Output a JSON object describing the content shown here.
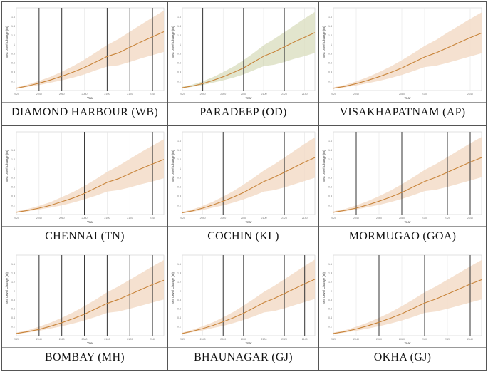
{
  "shared": {
    "x_label": "Year",
    "y_label": "Sea Level Change (m)",
    "line_color": "#c8843a",
    "band_color": "#f3dcc8",
    "band_color_alt": "#dde0c4",
    "x": [
      2020,
      2030,
      2040,
      2050,
      2060,
      2070,
      2080,
      2090,
      2100,
      2110,
      2120,
      2130,
      2140,
      2150
    ],
    "ylim": [
      0,
      1.8
    ]
  },
  "chart_data": [
    {
      "type": "area",
      "title": "DIAMOND HARBOUR (WB)",
      "variant": "orange",
      "x_ticks": [
        "2020",
        "2040",
        "2060",
        "2080",
        "2100",
        "2120",
        "2140"
      ],
      "y_ticks": [
        "0.2",
        "0.4",
        "0.6",
        "0.8",
        "1",
        "1.2",
        "1.4",
        "1.6"
      ],
      "vlines": [
        2040,
        2060,
        2100,
        2120,
        2140
      ],
      "median": [
        0.05,
        0.1,
        0.16,
        0.23,
        0.31,
        0.4,
        0.5,
        0.62,
        0.74,
        0.82,
        0.94,
        1.06,
        1.17,
        1.28
      ],
      "low": [
        0.04,
        0.08,
        0.12,
        0.17,
        0.22,
        0.28,
        0.35,
        0.44,
        0.52,
        0.55,
        0.62,
        0.7,
        0.77,
        0.84
      ],
      "high": [
        0.07,
        0.13,
        0.21,
        0.3,
        0.41,
        0.53,
        0.67,
        0.83,
        0.99,
        1.12,
        1.28,
        1.44,
        1.59,
        1.74
      ]
    },
    {
      "type": "area",
      "title": "PARADEEP (OD)",
      "variant": "olive",
      "x_ticks": [
        "2020",
        "2040",
        "2060",
        "2080",
        "2100",
        "2120",
        "2140"
      ],
      "y_ticks": [
        "0.2",
        "0.4",
        "0.6",
        "0.8",
        "1",
        "1.2",
        "1.4",
        "1.6"
      ],
      "vlines": [
        2040,
        2080,
        2100,
        2120
      ],
      "median": [
        0.06,
        0.1,
        0.15,
        0.22,
        0.3,
        0.39,
        0.49,
        0.62,
        0.75,
        0.84,
        0.95,
        1.06,
        1.16,
        1.26
      ],
      "low": [
        0.05,
        0.08,
        0.12,
        0.17,
        0.22,
        0.28,
        0.35,
        0.44,
        0.53,
        0.56,
        0.62,
        0.69,
        0.75,
        0.82
      ],
      "high": [
        0.08,
        0.13,
        0.2,
        0.29,
        0.4,
        0.52,
        0.66,
        0.82,
        0.99,
        1.12,
        1.27,
        1.42,
        1.57,
        1.71
      ]
    },
    {
      "type": "area",
      "title": "VISAKHAPATNAM (AP)",
      "variant": "orange",
      "x_ticks": [
        "2020",
        "2040",
        "2080",
        "2100",
        "2140"
      ],
      "y_ticks": [
        "0.2",
        "0.4",
        "0.6",
        "0.8",
        "1",
        "1.2",
        "1.4",
        "1.6"
      ],
      "vlines": [],
      "median": [
        0.05,
        0.09,
        0.15,
        0.22,
        0.3,
        0.39,
        0.49,
        0.61,
        0.73,
        0.82,
        0.93,
        1.04,
        1.15,
        1.25
      ],
      "low": [
        0.04,
        0.07,
        0.11,
        0.16,
        0.21,
        0.27,
        0.34,
        0.42,
        0.51,
        0.54,
        0.6,
        0.67,
        0.74,
        0.81
      ],
      "high": [
        0.07,
        0.12,
        0.2,
        0.29,
        0.4,
        0.52,
        0.66,
        0.81,
        0.97,
        1.1,
        1.26,
        1.41,
        1.56,
        1.7
      ]
    },
    {
      "type": "area",
      "title": "CHENNAI (TN)",
      "variant": "orange",
      "x_ticks": [
        "2020",
        "2040",
        "2060",
        "2080",
        "2100",
        "2120",
        "2140"
      ],
      "y_ticks": [
        "0.2",
        "0.4",
        "0.6",
        "0.8",
        "1",
        "1.2",
        "1.4"
      ],
      "vlines": [
        2080,
        2140
      ],
      "median": [
        0.05,
        0.09,
        0.14,
        0.2,
        0.28,
        0.36,
        0.46,
        0.58,
        0.7,
        0.78,
        0.89,
        1.0,
        1.1,
        1.2
      ],
      "low": [
        0.04,
        0.07,
        0.11,
        0.15,
        0.2,
        0.26,
        0.33,
        0.41,
        0.5,
        0.53,
        0.59,
        0.66,
        0.72,
        0.79
      ],
      "high": [
        0.07,
        0.12,
        0.19,
        0.27,
        0.38,
        0.49,
        0.62,
        0.77,
        0.93,
        1.06,
        1.21,
        1.36,
        1.5,
        1.64
      ]
    },
    {
      "type": "area",
      "title": "COCHIN (KL)",
      "variant": "orange",
      "x_ticks": [
        "2020",
        "2040",
        "2060",
        "2080",
        "2100",
        "2120",
        "2140"
      ],
      "y_ticks": [
        "0.2",
        "0.4",
        "0.6",
        "0.8",
        "1",
        "1.2",
        "1.4",
        "1.6"
      ],
      "vlines": [
        2060,
        2120
      ],
      "median": [
        0.04,
        0.08,
        0.14,
        0.21,
        0.29,
        0.38,
        0.48,
        0.6,
        0.72,
        0.81,
        0.92,
        1.03,
        1.14,
        1.24
      ],
      "low": [
        0.03,
        0.06,
        0.1,
        0.15,
        0.2,
        0.26,
        0.33,
        0.41,
        0.5,
        0.53,
        0.59,
        0.66,
        0.73,
        0.8
      ],
      "high": [
        0.06,
        0.11,
        0.19,
        0.28,
        0.39,
        0.51,
        0.65,
        0.8,
        0.96,
        1.09,
        1.24,
        1.39,
        1.54,
        1.68
      ]
    },
    {
      "type": "area",
      "title": "MORMUGAO (GOA)",
      "variant": "orange",
      "x_ticks": [
        "2020",
        "2040",
        "2060",
        "2080",
        "2100",
        "2120",
        "2140"
      ],
      "y_ticks": [
        "0.2",
        "0.4",
        "0.6",
        "0.8",
        "1",
        "1.2",
        "1.4",
        "1.6"
      ],
      "vlines": [
        2040,
        2080,
        2120,
        2140
      ],
      "median": [
        0.05,
        0.09,
        0.14,
        0.21,
        0.29,
        0.38,
        0.48,
        0.6,
        0.72,
        0.81,
        0.92,
        1.03,
        1.14,
        1.24
      ],
      "low": [
        0.04,
        0.07,
        0.11,
        0.16,
        0.21,
        0.27,
        0.34,
        0.42,
        0.51,
        0.54,
        0.6,
        0.67,
        0.74,
        0.81
      ],
      "high": [
        0.07,
        0.12,
        0.2,
        0.29,
        0.4,
        0.52,
        0.66,
        0.81,
        0.97,
        1.1,
        1.25,
        1.4,
        1.55,
        1.69
      ]
    },
    {
      "type": "area",
      "title": "BOMBAY (MH)",
      "variant": "orange",
      "x_ticks": [
        "2020",
        "2040",
        "2060",
        "2080",
        "2100",
        "2120",
        "2140"
      ],
      "y_ticks": [
        "0.2",
        "0.4",
        "0.6",
        "0.8",
        "1",
        "1.2",
        "1.4",
        "1.6"
      ],
      "vlines": [
        2040,
        2060,
        2080,
        2100,
        2120,
        2140
      ],
      "median": [
        0.05,
        0.09,
        0.14,
        0.21,
        0.29,
        0.38,
        0.48,
        0.6,
        0.72,
        0.81,
        0.92,
        1.03,
        1.14,
        1.24
      ],
      "low": [
        0.04,
        0.07,
        0.11,
        0.16,
        0.21,
        0.27,
        0.34,
        0.42,
        0.51,
        0.54,
        0.6,
        0.67,
        0.74,
        0.81
      ],
      "high": [
        0.07,
        0.12,
        0.2,
        0.29,
        0.4,
        0.52,
        0.66,
        0.81,
        0.97,
        1.1,
        1.25,
        1.4,
        1.55,
        1.69
      ]
    },
    {
      "type": "area",
      "title": "BHAUNAGAR (GJ)",
      "variant": "orange",
      "x_ticks": [
        "2020",
        "2040",
        "2060",
        "2080",
        "2100",
        "2120",
        "2140"
      ],
      "y_ticks": [
        "0.2",
        "0.4",
        "0.6",
        "0.8",
        "1",
        "1.2",
        "1.4",
        "1.6"
      ],
      "vlines": [
        2060,
        2080,
        2120,
        2140
      ],
      "median": [
        0.05,
        0.1,
        0.16,
        0.23,
        0.31,
        0.4,
        0.5,
        0.62,
        0.74,
        0.83,
        0.94,
        1.05,
        1.16,
        1.26
      ],
      "low": [
        0.04,
        0.08,
        0.12,
        0.17,
        0.22,
        0.28,
        0.35,
        0.43,
        0.52,
        0.55,
        0.61,
        0.68,
        0.75,
        0.82
      ],
      "high": [
        0.07,
        0.13,
        0.21,
        0.3,
        0.41,
        0.53,
        0.67,
        0.82,
        0.98,
        1.11,
        1.26,
        1.41,
        1.56,
        1.7
      ]
    },
    {
      "type": "area",
      "title": "OKHA (GJ)",
      "variant": "orange",
      "x_ticks": [
        "2020",
        "2040",
        "2060",
        "2080",
        "2100",
        "2120",
        "2140"
      ],
      "y_ticks": [
        "0.2",
        "0.4",
        "0.6",
        "0.8",
        "1",
        "1.2",
        "1.4",
        "1.6"
      ],
      "vlines": [
        2060,
        2100,
        2140
      ],
      "median": [
        0.05,
        0.09,
        0.15,
        0.22,
        0.3,
        0.39,
        0.49,
        0.61,
        0.73,
        0.82,
        0.93,
        1.04,
        1.15,
        1.25
      ],
      "low": [
        0.04,
        0.07,
        0.11,
        0.16,
        0.21,
        0.27,
        0.34,
        0.42,
        0.51,
        0.54,
        0.6,
        0.67,
        0.74,
        0.81
      ],
      "high": [
        0.07,
        0.12,
        0.2,
        0.29,
        0.4,
        0.52,
        0.66,
        0.81,
        0.97,
        1.1,
        1.25,
        1.4,
        1.55,
        1.69
      ]
    }
  ]
}
